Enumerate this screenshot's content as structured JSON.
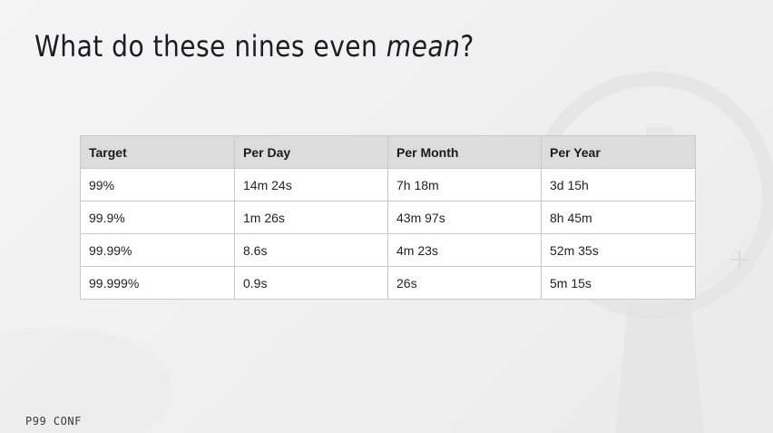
{
  "slide": {
    "title_main": "What do these nines even ",
    "title_emphasis": "mean",
    "title_end": "?",
    "footer": "P99 CONF"
  },
  "table": {
    "headers": [
      "Target",
      "Per Day",
      "Per Month",
      "Per Year"
    ],
    "rows": [
      [
        "99%",
        "14m 24s",
        "7h 18m",
        "3d 15h"
      ],
      [
        "99.9%",
        "1m 26s",
        "43m 97s",
        "8h 45m"
      ],
      [
        "99.99%",
        "8.6s",
        "4m 23s",
        "52m 35s"
      ],
      [
        "99.999%",
        "0.9s",
        "26s",
        "5m 15s"
      ]
    ]
  },
  "colors": {
    "background": "#f1f1f1",
    "header_fill": "#dcdcdc",
    "border": "#c9c9c9",
    "text": "#1c1c24"
  }
}
